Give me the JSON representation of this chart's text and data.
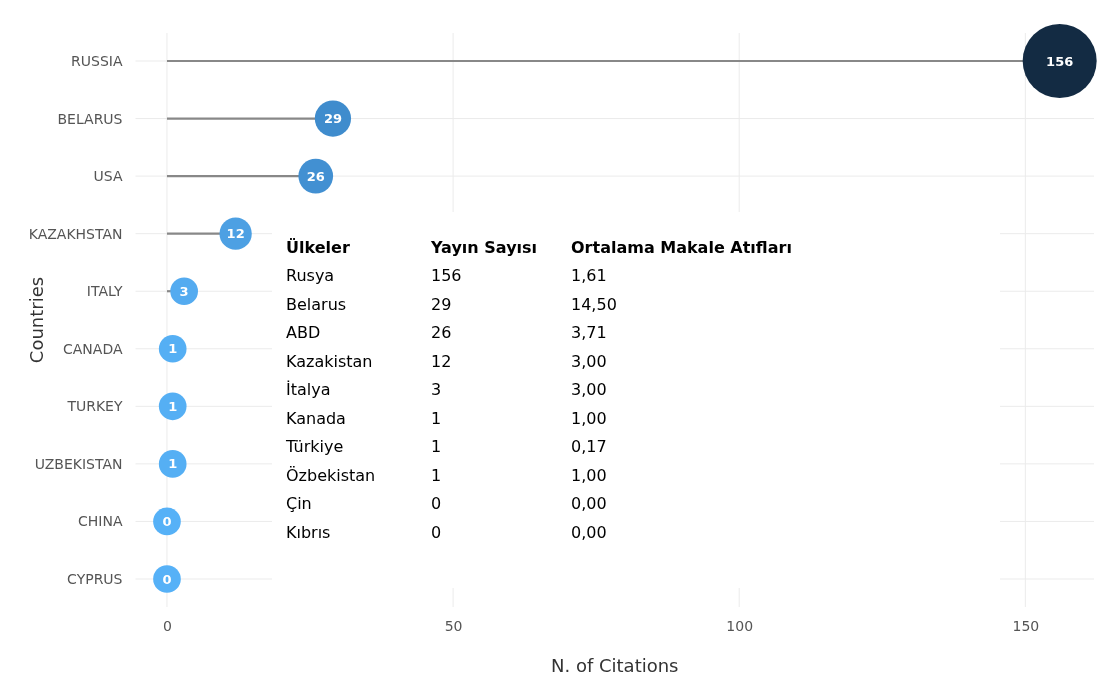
{
  "chart_data": [
    {
      "type": "lollipop",
      "xlabel": "N. of Citations",
      "ylabel": "Countries",
      "orientation": "horizontal",
      "categories": [
        "RUSSIA",
        "BELARUS",
        "USA",
        "KAZAKHSTAN",
        "ITALY",
        "CANADA",
        "TURKEY",
        "UZBEKISTAN",
        "CHINA",
        "CYPRUS"
      ],
      "values": [
        156,
        29,
        26,
        12,
        3,
        1,
        1,
        1,
        0,
        0
      ],
      "sizes": [
        1,
        0.24,
        0.22,
        0.19,
        0.14,
        0.14,
        0.14,
        0.14,
        0.14,
        0.14
      ],
      "colors": [
        "#132b43",
        "#3f8ccd",
        "#4290d2",
        "#4da0e3",
        "#54abf0",
        "#55aff4",
        "#55aff4",
        "#55aff4",
        "#56b1f7",
        "#56b1f7"
      ],
      "xlim": [
        -5.5,
        162
      ],
      "xticks": [
        0,
        50,
        100,
        150
      ],
      "grid": true,
      "data_labels": true
    },
    {
      "type": "other",
      "categories": [
        "Ülkeler",
        "Yayın Sayısı",
        "Ortalama Makale Atıfları"
      ],
      "cell_labels": [
        [
          "Rusya",
          "156",
          "1,61"
        ],
        [
          "Belarus",
          "29",
          "14,50"
        ],
        [
          "ABD",
          "26",
          "3,71"
        ],
        [
          "Kazakistan",
          "12",
          "3,00"
        ],
        [
          "İtalya",
          "3",
          "3,00"
        ],
        [
          "Kanada",
          "1",
          "1,00"
        ],
        [
          "Türkiye",
          "1",
          "0,17"
        ],
        [
          "Özbekistan",
          "1",
          "1,00"
        ],
        [
          "Çin",
          "0",
          "0,00"
        ],
        [
          "Kıbrıs",
          "0",
          "0,00"
        ]
      ]
    }
  ]
}
